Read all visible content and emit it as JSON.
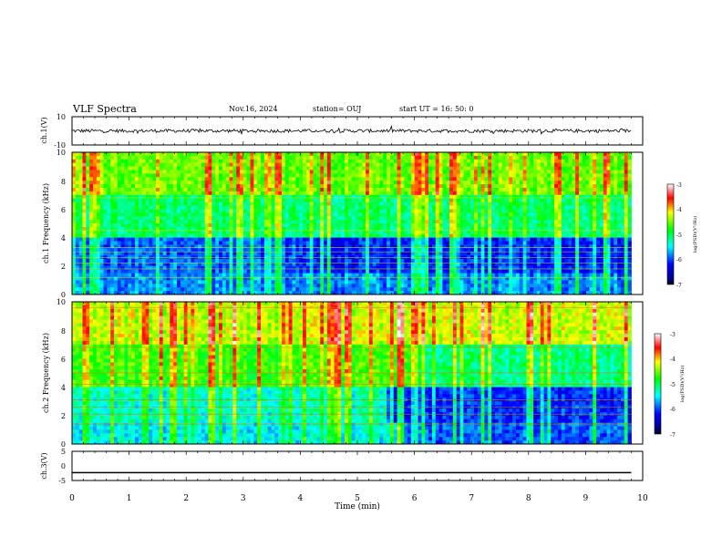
{
  "header": {
    "title": "VLF Spectra",
    "date": "Nov.16, 2024",
    "station": "station= OUJ",
    "start": "start  UT =   16: 50: 0"
  },
  "chart_data": [
    {
      "type": "line",
      "panel": "ch1-waveform",
      "ylabel": "ch.1(V)",
      "ylim": [
        -10,
        10
      ],
      "yticks": [
        "10",
        "-10"
      ],
      "xlim": [
        0,
        10
      ],
      "series": [
        {
          "values_note": "noise",
          "baseline": 0,
          "amplitude": 1.2
        }
      ]
    },
    {
      "type": "heatmap",
      "panel": "ch1-spectrogram",
      "ylabel": "ch.1 Frequency  (kHz)",
      "ylim": [
        0,
        10
      ],
      "yticks": [
        "0",
        "2",
        "4",
        "6",
        "8",
        "10"
      ],
      "xlim": [
        0,
        10
      ],
      "colorbar": {
        "label": "log(PSD)(V²/Hz)",
        "range": [
          -7,
          -3
        ],
        "ticks": [
          "-3",
          "-4",
          "-5",
          "-6",
          "-7"
        ]
      },
      "data_end_min": 9.8
    },
    {
      "type": "heatmap",
      "panel": "ch2-spectrogram",
      "ylabel": "ch.2 Frequency  (kHz)",
      "ylim": [
        0,
        10
      ],
      "yticks": [
        "0",
        "2",
        "4",
        "6",
        "8",
        "10"
      ],
      "xlim": [
        0,
        10
      ],
      "colorbar": {
        "label": "log(PSD)(V²/Hz)",
        "range": [
          -7,
          -3
        ],
        "ticks": [
          "-3",
          "-4",
          "-5",
          "-6",
          "-7"
        ]
      },
      "data_end_min": 9.8
    },
    {
      "type": "line",
      "panel": "ch3-waveform",
      "ylabel": "ch.3(V)",
      "ylim": [
        -5,
        5
      ],
      "yticks": [
        "5",
        "0",
        "-5"
      ],
      "xlim": [
        0,
        10
      ],
      "series": [
        {
          "constant": -2.3
        }
      ]
    }
  ],
  "xaxis": {
    "label": "Time  (min)",
    "ticks": [
      "0",
      "1",
      "2",
      "3",
      "4",
      "5",
      "6",
      "7",
      "8",
      "9",
      "10"
    ]
  }
}
